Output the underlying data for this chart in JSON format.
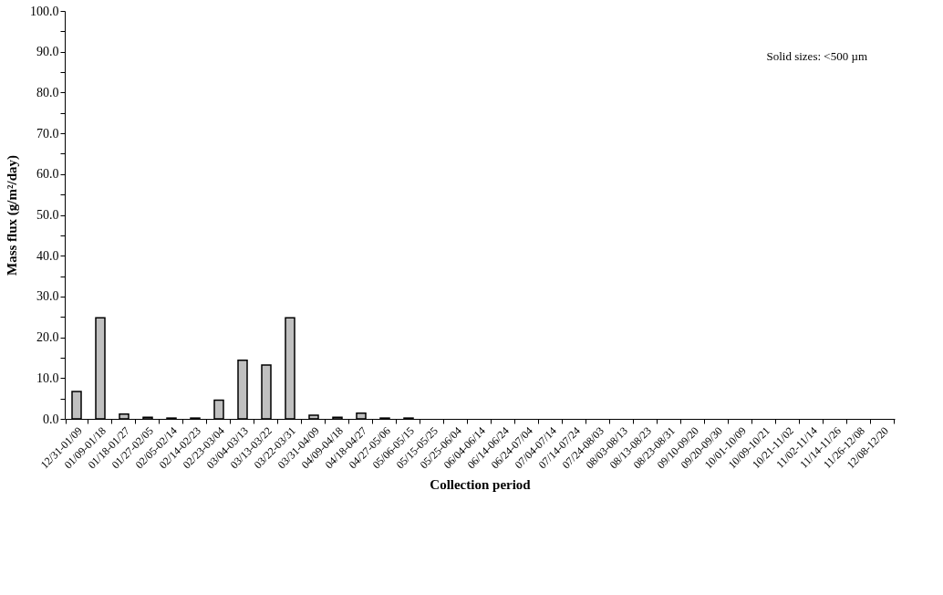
{
  "chart_data": {
    "type": "bar",
    "xlabel": "Collection period",
    "ylabel": "Mass flux  (g/m²/day)",
    "categories": [
      "12/31-01/09",
      "01/09-01/18",
      "01/18-01/27",
      "01/27-02/05",
      "02/05-02/14",
      "02/14-02/23",
      "02/23-03/04",
      "03/04-03/13",
      "03/13-03/22",
      "03/22-03/31",
      "03/31-04/09",
      "04/09-04/18",
      "04/18-04/27",
      "04/27-05/06",
      "05/06-05/15",
      "05/15-05/25",
      "05/25-06/04",
      "06/04-06/14",
      "06/14-06/24",
      "06/24-07/04",
      "07/04-07/14",
      "07/14-07/24",
      "07/24-08/03",
      "08/03-08/13",
      "08/13-08/23",
      "08/23-08/31",
      "09/10-09/20",
      "09/20-09/30",
      "10/01-10/09",
      "10/09-10/21",
      "10/21-11/02",
      "11/02-11/14",
      "11/14-11/26",
      "11/26-12/08",
      "12/08-12/20"
    ],
    "values": [
      6.7,
      24.8,
      1.2,
      0.4,
      0.2,
      0.2,
      4.6,
      14.4,
      13.2,
      24.8,
      0.9,
      0.4,
      1.4,
      0.2,
      0.2,
      null,
      null,
      null,
      null,
      null,
      null,
      null,
      null,
      null,
      null,
      null,
      null,
      null,
      null,
      null,
      null,
      null,
      null,
      null,
      null
    ],
    "color": "#c0c0c0",
    "ylim": [
      0,
      100
    ],
    "yticks": [
      {
        "value": 0,
        "label": "0.0"
      },
      {
        "value": 5,
        "label": null
      },
      {
        "value": 10,
        "label": "10.0"
      },
      {
        "value": 15,
        "label": null
      },
      {
        "value": 20,
        "label": "20.0"
      },
      {
        "value": 25,
        "label": null
      },
      {
        "value": 30,
        "label": "30.0"
      },
      {
        "value": 35,
        "label": null
      },
      {
        "value": 40,
        "label": "40.0"
      },
      {
        "value": 45,
        "label": null
      },
      {
        "value": 50,
        "label": "50.0"
      },
      {
        "value": 55,
        "label": null
      },
      {
        "value": 60,
        "label": "60.0"
      },
      {
        "value": 65,
        "label": null
      },
      {
        "value": 70,
        "label": "70.0"
      },
      {
        "value": 75,
        "label": null
      },
      {
        "value": 80,
        "label": "80.0"
      },
      {
        "value": 85,
        "label": null
      },
      {
        "value": 90,
        "label": "90.0"
      },
      {
        "value": 95,
        "label": null
      },
      {
        "value": 100,
        "label": "100.0"
      }
    ],
    "grid": false,
    "annotations": [
      "Solid sizes: <500 µm"
    ]
  }
}
